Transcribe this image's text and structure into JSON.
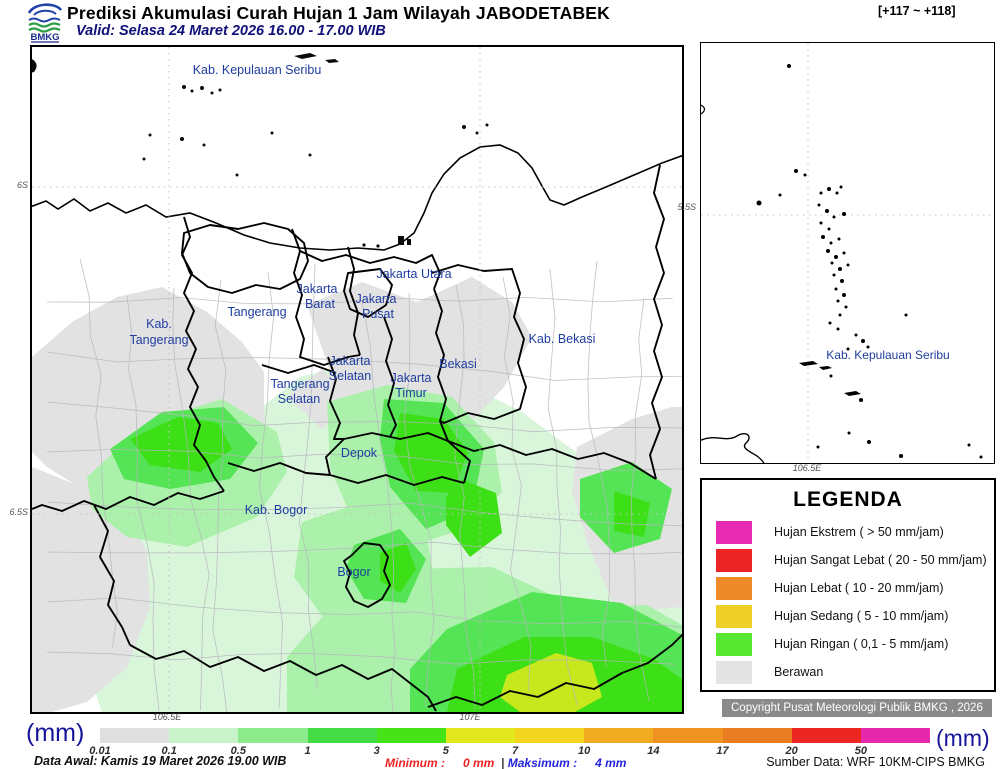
{
  "header": {
    "logo_text": "BMKG",
    "title": "Prediksi Akumulasi Curah Hujan 1 Jam Wilayah JABODETABEK",
    "valid": "Valid: Selasa 24 Maret 2026 16.00 - 17.00 WIB",
    "forecast_range": "[+117 ~ +118]"
  },
  "main_map": {
    "axis": {
      "lat1": "6S",
      "lat2": "6.5S",
      "lon1": "106.5E",
      "lon2": "107E"
    },
    "regions": {
      "seribu": "Kab. Kepulauan Seribu",
      "kab_tangerang1": "Kab.",
      "kab_tangerang2": "Tangerang",
      "tangerang": "Tangerang",
      "jakbar1": "Jakarta",
      "jakbar2": "Barat",
      "jakut": "Jakarta Utara",
      "jakpus1": "Jakarta",
      "jakpus2": "Pusat",
      "kab_bekasi": "Kab. Bekasi",
      "bekasi": "Bekasi",
      "jaksel1": "Jakarta",
      "jaksel2": "Selatan",
      "jaktim1": "Jakarta",
      "jaktim2": "Timur",
      "tangsel1": "Tangerang",
      "tangsel2": "Selatan",
      "depok": "Depok",
      "kab_bogor": "Kab. Bogor",
      "bogor": "Bogor"
    },
    "colors": {
      "berawan": "#e2e2e2",
      "rain_palest": "#daf6da",
      "rain_light": "#abf1ab",
      "rain_medium": "#55e455",
      "rain_bright": "#3ddf16",
      "rain_yellowgreen": "#c8e81e"
    }
  },
  "inset_map": {
    "label": "Kab. Kepulauan Seribu",
    "axis": {
      "lat": "5.5S",
      "lon": "106.5E"
    }
  },
  "legend": {
    "title": "LEGENDA",
    "items": [
      {
        "label": "Hujan Ekstrem ( > 50 mm/jam)",
        "color": "#e62ab2"
      },
      {
        "label": "Hujan Sangat Lebat ( 20 - 50 mm/jam)",
        "color": "#ec2426"
      },
      {
        "label": "Hujan Lebat ( 10 - 20 mm/jam)",
        "color": "#ee8a28"
      },
      {
        "label": "Hujan Sedang ( 5 - 10 mm/jam)",
        "color": "#efd028"
      },
      {
        "label": "Hujan Ringan ( 0,1 - 5 mm/jam)",
        "color": "#59e831"
      },
      {
        "label": "Berawan",
        "color": "#e4e4e4"
      }
    ]
  },
  "copyright": "Copyright Pusat Meteorologi Publik BMKG , 2026",
  "scale_bar": {
    "unit_left": "(mm)",
    "unit_right": "(mm)",
    "ticks": [
      "0.01",
      "0.1",
      "0.5",
      "1",
      "3",
      "5",
      "7",
      "10",
      "14",
      "17",
      "20",
      "50"
    ],
    "segment_colors": [
      "#e0e0e0",
      "#c8f2c8",
      "#8deb8d",
      "#45dc45",
      "#47e319",
      "#e2e81e",
      "#f2d51e",
      "#f0ab20",
      "#ee9222",
      "#ea7d22",
      "#ec2723",
      "#e628ac"
    ]
  },
  "footer": {
    "data_awal": "Data Awal: Kamis 19 Maret 2026 19.00 WIB",
    "minimum_label": "Minimum :",
    "minimum_value": "0 mm",
    "separator": "|",
    "maksimum_label": "Maksimum :",
    "maksimum_value": "4 mm",
    "sumber_data": "Sumber Data: WRF 10KM-CIPS BMKG"
  }
}
